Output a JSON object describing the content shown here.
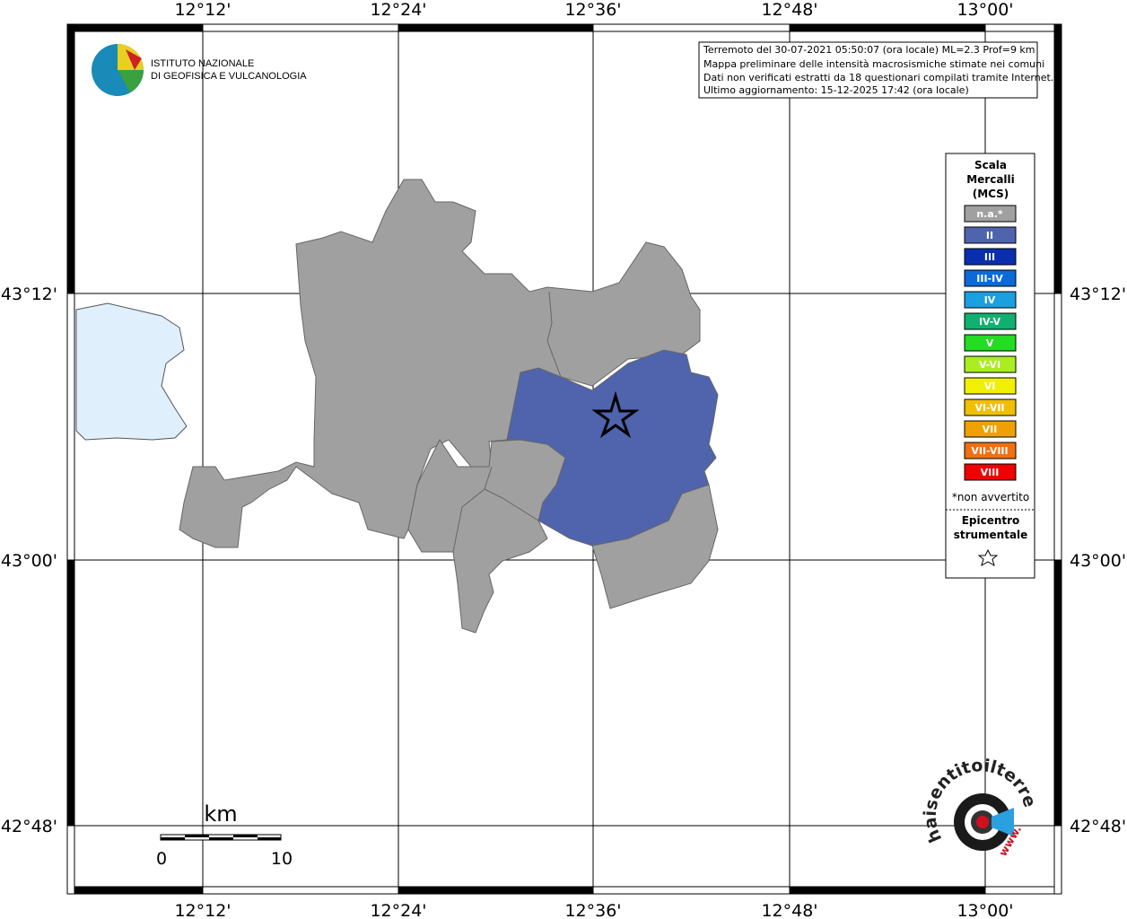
{
  "map": {
    "lon_labels": [
      "12°12'",
      "12°24'",
      "12°36'",
      "12°48'",
      "13°00'"
    ],
    "lat_labels": [
      "43°12'",
      "43°00'",
      "42°48'"
    ],
    "info": [
      "Terremoto del 30-07-2021 05:50:07 (ora locale) ML=2.3 Prof=9 km",
      "Mappa preliminare delle intensità macrosismiche stimate nei comuni",
      "Dati non verificati estratti da 18 questionari compilati tramite Internet.",
      "Ultimo aggiornamento: 15-12-2025 17:42 (ora locale)"
    ],
    "logo": [
      "ISTITUTO NAZIONALE",
      "DI GEOFISICA E VULCANOLOGIA"
    ],
    "legend": {
      "title": [
        "Scala",
        "Mercalli",
        "(MCS)"
      ],
      "classes": [
        {
          "label": "n.a.*",
          "color": "#a0a0a0"
        },
        {
          "label": "II",
          "color": "#4f64ad"
        },
        {
          "label": "III",
          "color": "#0a2fae"
        },
        {
          "label": "III-IV",
          "color": "#0a6ad8"
        },
        {
          "label": "IV",
          "color": "#1aa0e0"
        },
        {
          "label": "IV-V",
          "color": "#10b070"
        },
        {
          "label": "V",
          "color": "#22dd22"
        },
        {
          "label": "V-VI",
          "color": "#aaee22"
        },
        {
          "label": "VI",
          "color": "#f0f000"
        },
        {
          "label": "VI-VII",
          "color": "#f0c000"
        },
        {
          "label": "VII",
          "color": "#f0a000"
        },
        {
          "label": "VII-VIII",
          "color": "#f07010"
        },
        {
          "label": "VIII",
          "color": "#f00000"
        }
      ],
      "note": "*non avvertito",
      "epicenter": [
        "Epicentro",
        "strumentale"
      ]
    },
    "scale": {
      "unit": "km",
      "ticks": [
        "0",
        "10"
      ]
    },
    "watermark": {
      "site": "haisentitoilterremoto.it",
      "prefix": "www."
    }
  }
}
